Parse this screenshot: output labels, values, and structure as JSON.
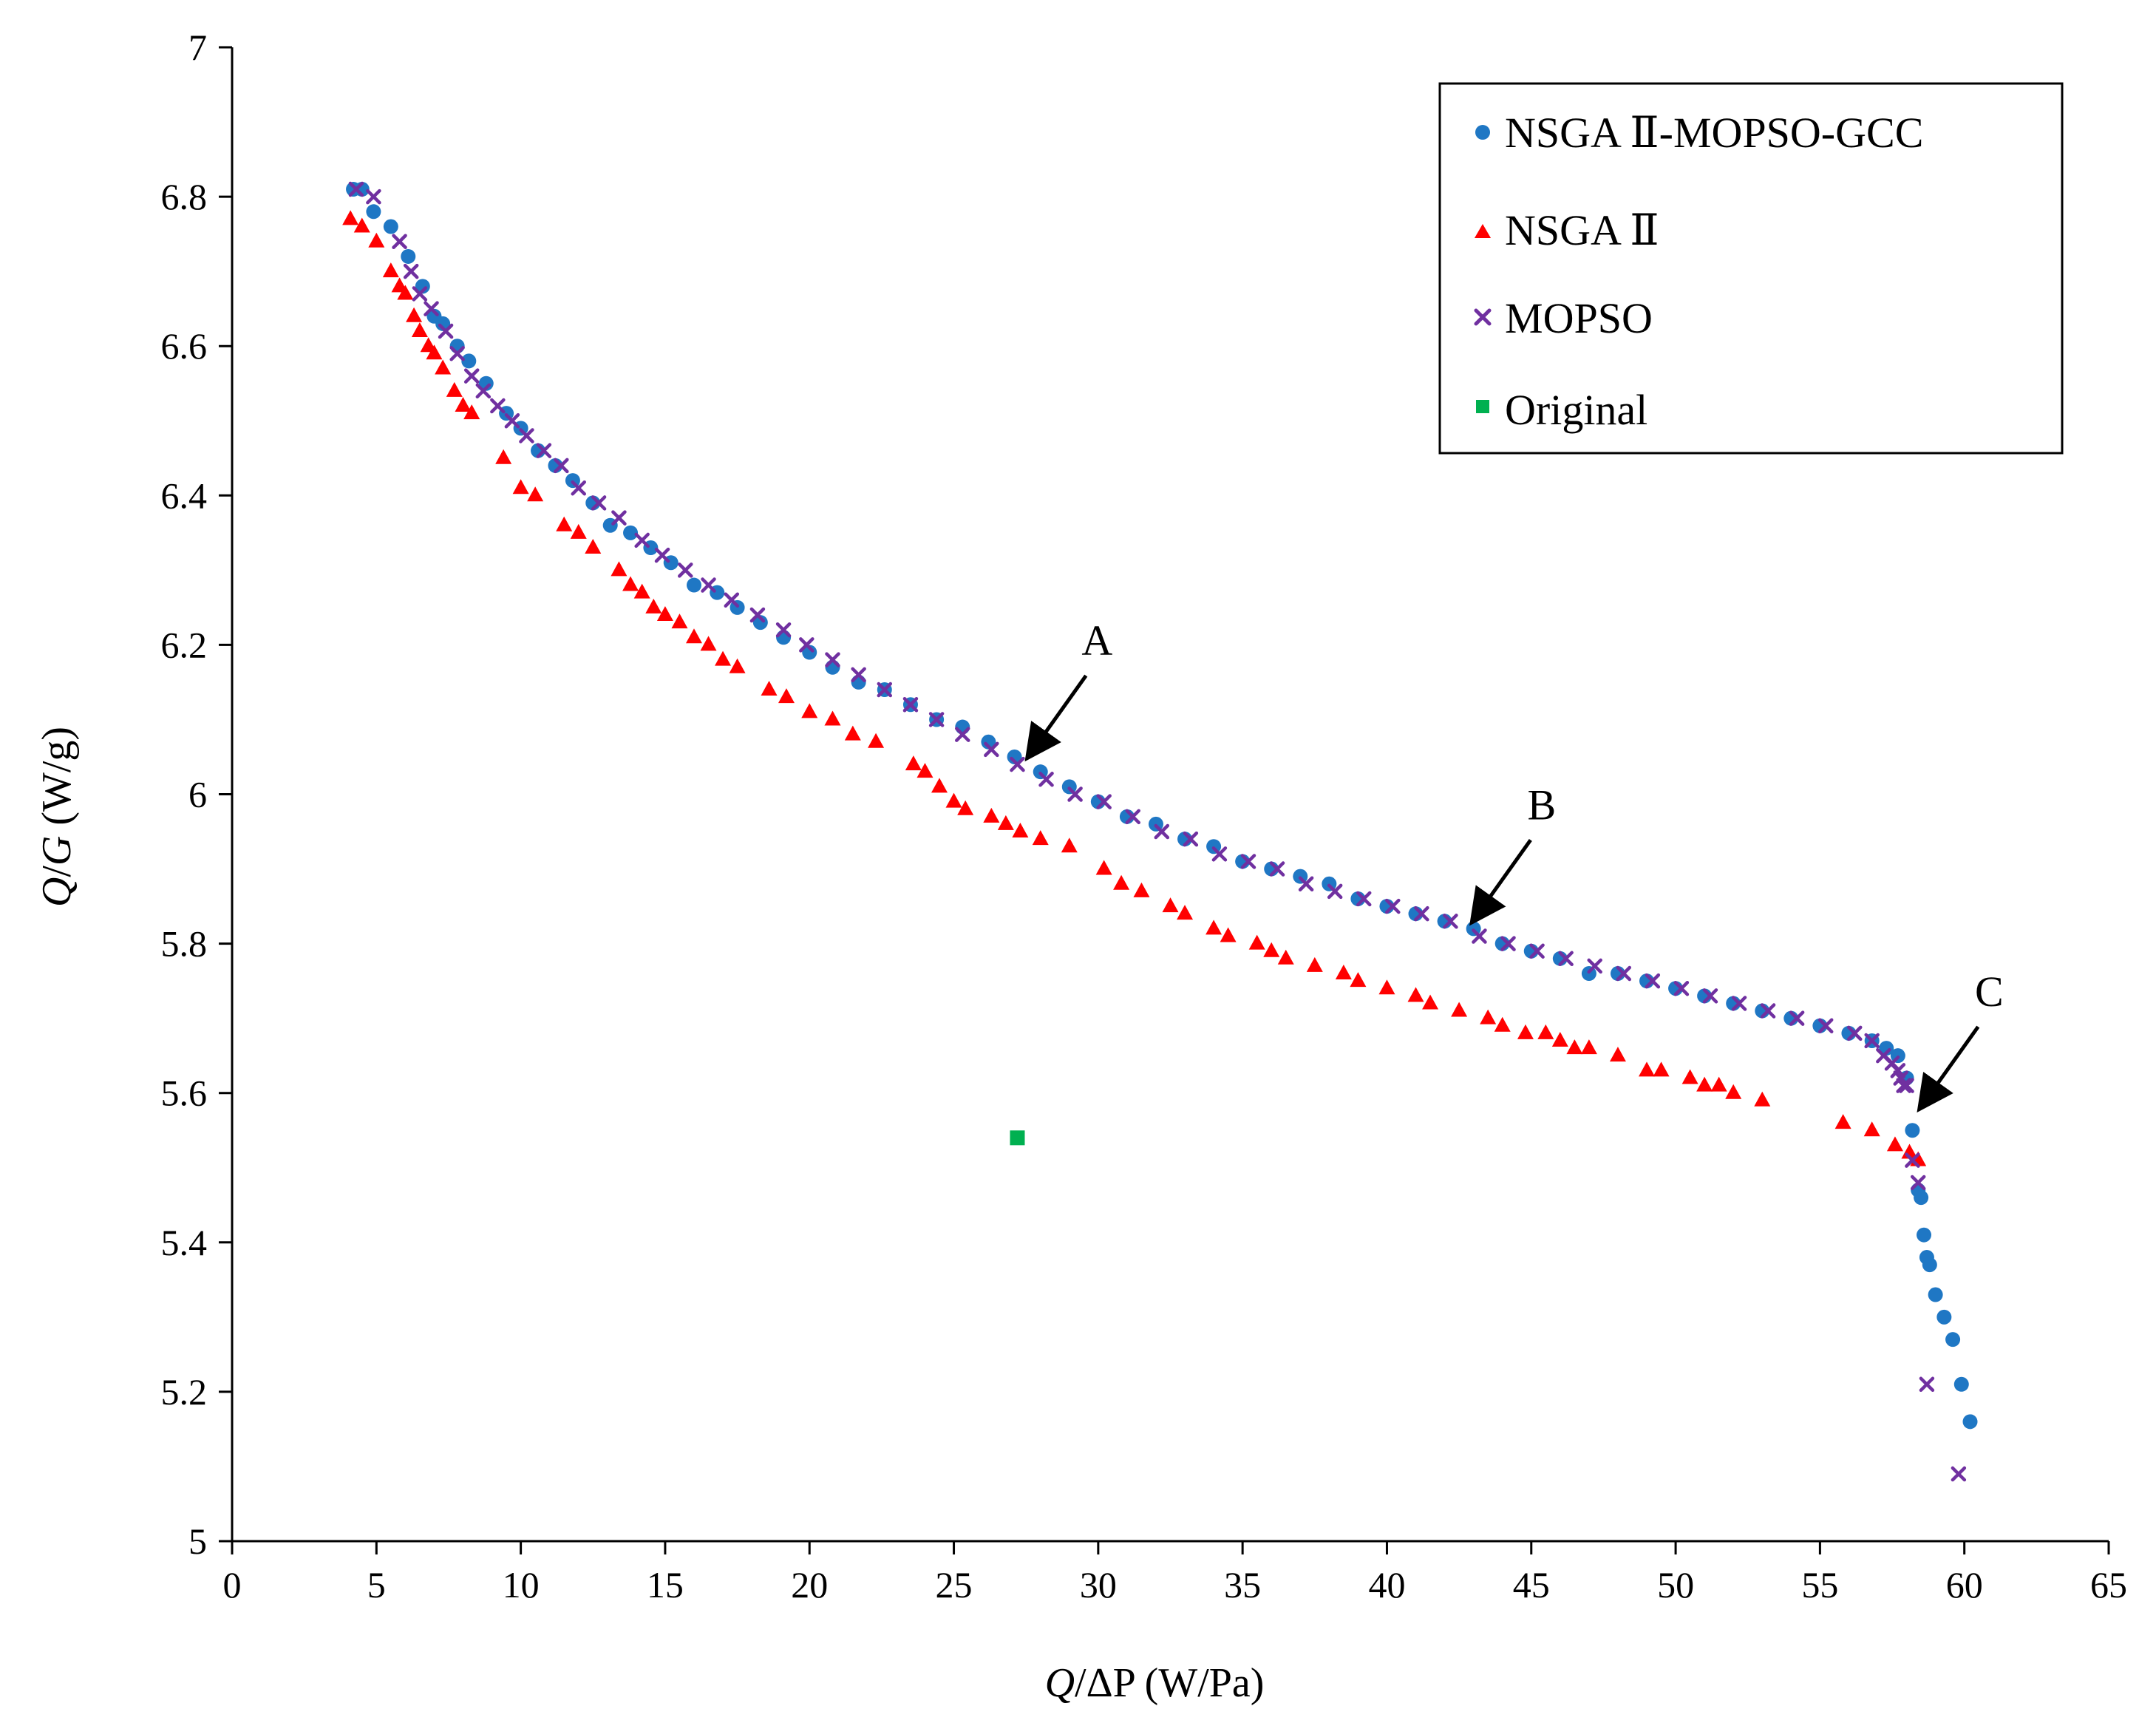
{
  "chart_data": {
    "type": "scatter",
    "title": "",
    "xlabel": {
      "italic": "Q",
      "rest": "/ΔP (W/Pa)"
    },
    "ylabel": {
      "italic1": "Q",
      "mid": "/",
      "italic2": "G",
      "rest": " (W/g)"
    },
    "xlim": [
      0,
      65
    ],
    "ylim": [
      5,
      7
    ],
    "xticks": [
      0,
      5,
      10,
      15,
      20,
      25,
      30,
      35,
      40,
      45,
      50,
      55,
      60,
      65
    ],
    "yticks": [
      5,
      5.2,
      5.4,
      5.6,
      5.8,
      6,
      6.2,
      6.4,
      6.6,
      6.8,
      7
    ],
    "ytick_labels": [
      "5",
      "5.2",
      "5.4",
      "5.6",
      "5.8",
      "6",
      "6.2",
      "6.4",
      "6.6",
      "6.8",
      "7"
    ],
    "grid": false,
    "legend_position": "top-right",
    "series": [
      {
        "name": "NSGA Ⅱ-MOPSO-GCC",
        "marker": "circle",
        "color": "#1f77c4",
        "x": [
          4.2,
          4.5,
          4.9,
          5.5,
          6.1,
          6.6,
          7.0,
          7.3,
          7.8,
          8.2,
          8.8,
          9.5,
          10.0,
          10.6,
          11.2,
          11.8,
          12.5,
          13.1,
          13.8,
          14.5,
          15.2,
          16.0,
          16.8,
          17.5,
          18.3,
          19.1,
          20.0,
          20.8,
          21.7,
          22.6,
          23.5,
          24.4,
          25.3,
          26.2,
          27.1,
          28.0,
          29.0,
          30.0,
          31.0,
          32.0,
          33.0,
          34.0,
          35.0,
          36.0,
          37.0,
          38.0,
          39.0,
          40.0,
          41.0,
          42.0,
          43.0,
          44.0,
          45.0,
          46.0,
          47.0,
          48.0,
          49.0,
          50.0,
          51.0,
          52.0,
          53.0,
          54.0,
          55.0,
          56.0,
          56.8,
          57.3,
          57.7,
          58.0,
          58.2,
          58.4,
          58.5,
          58.6,
          58.7,
          58.8,
          59.0,
          59.3,
          59.6,
          59.9,
          60.2
        ],
        "y": [
          6.81,
          6.81,
          6.78,
          6.76,
          6.72,
          6.68,
          6.64,
          6.63,
          6.6,
          6.58,
          6.55,
          6.51,
          6.49,
          6.46,
          6.44,
          6.42,
          6.39,
          6.36,
          6.35,
          6.33,
          6.31,
          6.28,
          6.27,
          6.25,
          6.23,
          6.21,
          6.19,
          6.17,
          6.15,
          6.14,
          6.12,
          6.1,
          6.09,
          6.07,
          6.05,
          6.03,
          6.01,
          5.99,
          5.97,
          5.96,
          5.94,
          5.93,
          5.91,
          5.9,
          5.89,
          5.88,
          5.86,
          5.85,
          5.84,
          5.83,
          5.82,
          5.8,
          5.79,
          5.78,
          5.76,
          5.76,
          5.75,
          5.74,
          5.73,
          5.72,
          5.71,
          5.7,
          5.69,
          5.68,
          5.67,
          5.66,
          5.65,
          5.62,
          5.55,
          5.47,
          5.46,
          5.41,
          5.38,
          5.37,
          5.33,
          5.3,
          5.27,
          5.21,
          5.16
        ]
      },
      {
        "name": "NSGA Ⅱ",
        "marker": "triangle",
        "color": "#ff0000",
        "x": [
          4.1,
          4.5,
          5.0,
          5.5,
          5.8,
          6.0,
          6.3,
          6.5,
          6.8,
          7.0,
          7.3,
          7.7,
          8.0,
          8.3,
          9.4,
          10.0,
          10.5,
          11.5,
          12.0,
          12.5,
          13.4,
          13.8,
          14.2,
          14.6,
          15.0,
          15.5,
          16.0,
          16.5,
          17.0,
          17.5,
          18.6,
          19.2,
          20.0,
          20.8,
          21.5,
          22.3,
          23.6,
          24.0,
          24.5,
          25.0,
          25.4,
          26.3,
          26.8,
          27.3,
          28.0,
          29.0,
          30.2,
          30.8,
          31.5,
          32.5,
          33.0,
          34.0,
          34.5,
          35.5,
          36.0,
          36.5,
          37.5,
          38.5,
          39.0,
          40.0,
          41.0,
          41.5,
          42.5,
          43.5,
          44.0,
          44.8,
          45.5,
          46.0,
          46.5,
          47.0,
          48.0,
          49.0,
          49.5,
          50.5,
          51.0,
          51.5,
          52.0,
          53.0,
          55.8,
          56.8,
          57.6,
          58.1,
          58.4
        ],
        "y": [
          6.77,
          6.76,
          6.74,
          6.7,
          6.68,
          6.67,
          6.64,
          6.62,
          6.6,
          6.59,
          6.57,
          6.54,
          6.52,
          6.51,
          6.45,
          6.41,
          6.4,
          6.36,
          6.35,
          6.33,
          6.3,
          6.28,
          6.27,
          6.25,
          6.24,
          6.23,
          6.21,
          6.2,
          6.18,
          6.17,
          6.14,
          6.13,
          6.11,
          6.1,
          6.08,
          6.07,
          6.04,
          6.03,
          6.01,
          5.99,
          5.98,
          5.97,
          5.96,
          5.95,
          5.94,
          5.93,
          5.9,
          5.88,
          5.87,
          5.85,
          5.84,
          5.82,
          5.81,
          5.8,
          5.79,
          5.78,
          5.77,
          5.76,
          5.75,
          5.74,
          5.73,
          5.72,
          5.71,
          5.7,
          5.69,
          5.68,
          5.68,
          5.67,
          5.66,
          5.66,
          5.65,
          5.63,
          5.63,
          5.62,
          5.61,
          5.61,
          5.6,
          5.59,
          5.56,
          5.55,
          5.53,
          5.52,
          5.51
        ]
      },
      {
        "name": "MOPSO",
        "marker": "cross",
        "color": "#7030a0",
        "x": [
          4.3,
          4.9,
          5.8,
          6.2,
          6.5,
          6.9,
          7.4,
          7.8,
          8.3,
          8.7,
          9.2,
          9.7,
          10.2,
          10.8,
          11.4,
          12.0,
          12.7,
          13.4,
          14.2,
          14.9,
          15.7,
          16.5,
          17.3,
          18.2,
          19.1,
          19.9,
          20.8,
          21.7,
          22.6,
          23.5,
          24.4,
          25.3,
          26.3,
          27.2,
          28.2,
          29.2,
          30.2,
          31.2,
          32.2,
          33.2,
          34.2,
          35.2,
          36.2,
          37.2,
          38.2,
          39.2,
          40.2,
          41.2,
          42.2,
          43.2,
          44.2,
          45.2,
          46.2,
          47.2,
          48.2,
          49.2,
          50.2,
          51.2,
          52.2,
          53.2,
          54.2,
          55.2,
          56.2,
          56.8,
          57.2,
          57.5,
          57.7,
          57.8,
          57.9,
          58.0,
          58.2,
          58.4,
          58.7,
          59.8
        ],
        "y": [
          6.81,
          6.8,
          6.74,
          6.7,
          6.67,
          6.65,
          6.62,
          6.59,
          6.56,
          6.54,
          6.52,
          6.5,
          6.48,
          6.46,
          6.44,
          6.41,
          6.39,
          6.37,
          6.34,
          6.32,
          6.3,
          6.28,
          6.26,
          6.24,
          6.22,
          6.2,
          6.18,
          6.16,
          6.14,
          6.12,
          6.1,
          6.08,
          6.06,
          6.04,
          6.02,
          6.0,
          5.99,
          5.97,
          5.95,
          5.94,
          5.92,
          5.91,
          5.9,
          5.88,
          5.87,
          5.86,
          5.85,
          5.84,
          5.83,
          5.81,
          5.8,
          5.79,
          5.78,
          5.77,
          5.76,
          5.75,
          5.74,
          5.73,
          5.72,
          5.71,
          5.7,
          5.69,
          5.68,
          5.67,
          5.65,
          5.64,
          5.63,
          5.62,
          5.61,
          5.61,
          5.51,
          5.48,
          5.21,
          5.09
        ]
      },
      {
        "name": "Original",
        "marker": "square",
        "color": "#00b050",
        "x": [
          27.2
        ],
        "y": [
          5.54
        ]
      }
    ],
    "annotations": [
      {
        "label": "A",
        "x": 27.4,
        "y": 6.04
      },
      {
        "label": "B",
        "x": 42.8,
        "y": 5.82
      },
      {
        "label": "C",
        "x": 58.3,
        "y": 5.57
      }
    ]
  }
}
